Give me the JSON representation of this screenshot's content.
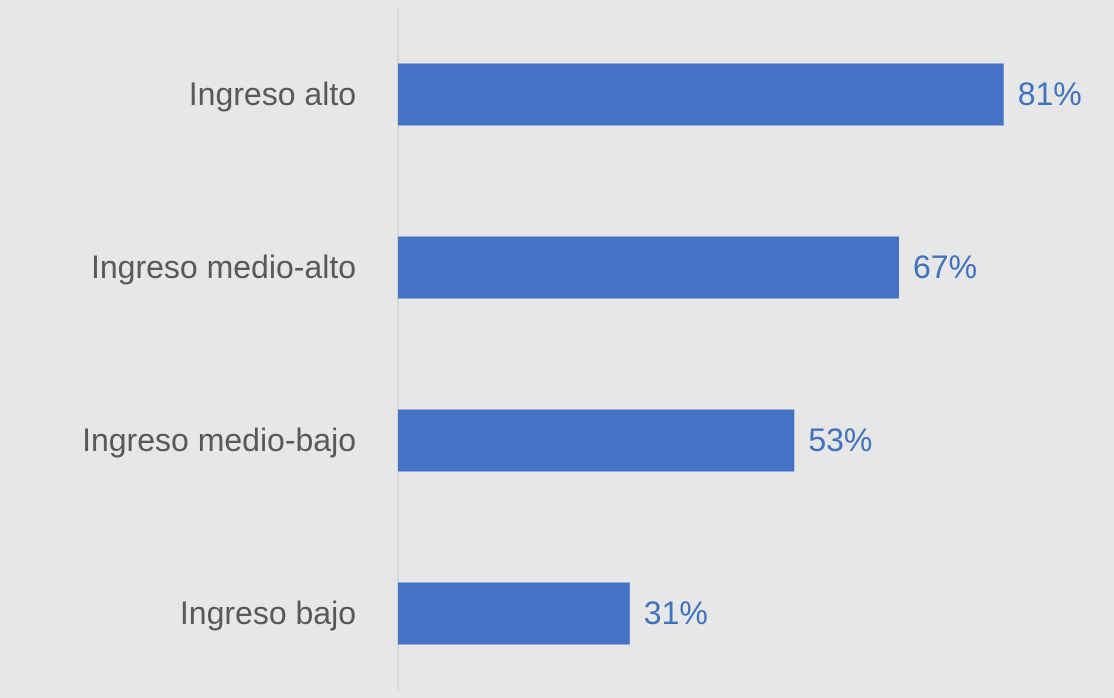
{
  "chart_data": {
    "type": "bar",
    "orientation": "horizontal",
    "categories": [
      "Ingreso alto",
      "Ingreso medio-alto",
      "Ingreso medio-bajo",
      "Ingreso bajo"
    ],
    "values": [
      81,
      67,
      53,
      31
    ],
    "value_labels": [
      "81%",
      "67%",
      "53%",
      "31%"
    ],
    "color": "#4472c4",
    "xlim": [
      0,
      90
    ]
  }
}
